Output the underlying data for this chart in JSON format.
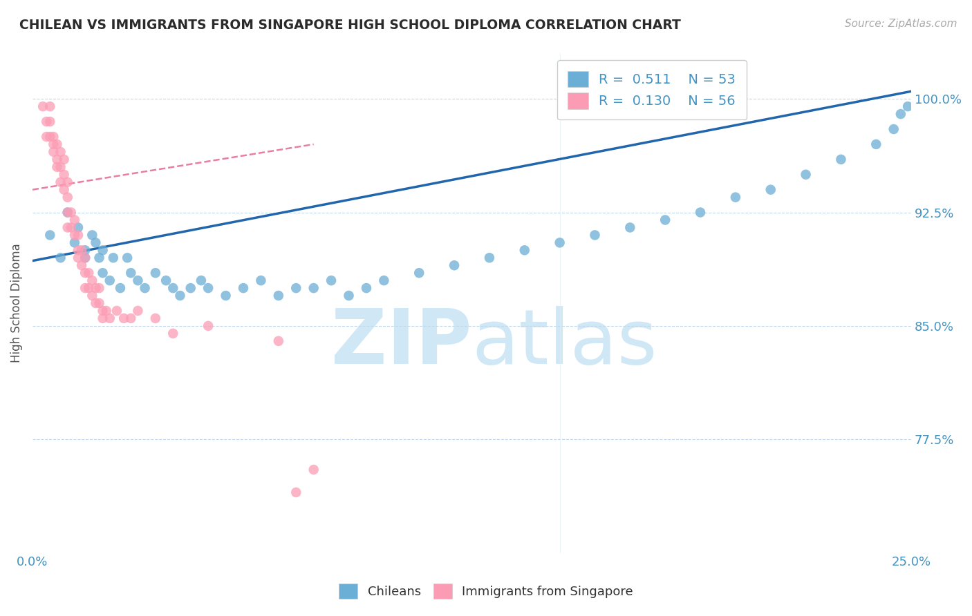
{
  "title": "CHILEAN VS IMMIGRANTS FROM SINGAPORE HIGH SCHOOL DIPLOMA CORRELATION CHART",
  "source_text": "Source: ZipAtlas.com",
  "ylabel": "High School Diploma",
  "xlim": [
    0.0,
    0.25
  ],
  "ylim": [
    0.7,
    1.03
  ],
  "yticks": [
    0.775,
    0.85,
    0.925,
    1.0
  ],
  "ytick_labels": [
    "77.5%",
    "85.0%",
    "92.5%",
    "100.0%"
  ],
  "xticks": [
    0.0,
    0.05,
    0.1,
    0.15,
    0.2,
    0.25
  ],
  "xtick_labels": [
    "0.0%",
    "",
    "",
    "",
    "",
    "25.0%"
  ],
  "legend_R_blue": "0.511",
  "legend_N_blue": "53",
  "legend_R_pink": "0.130",
  "legend_N_pink": "56",
  "blue_color": "#6baed6",
  "pink_color": "#fc9cb4",
  "blue_line_color": "#2166ac",
  "pink_line_color": "#e87fa0",
  "axis_color": "#4393c3",
  "watermark_color": "#d0e8f5",
  "blue_scatter_x": [
    0.005,
    0.008,
    0.01,
    0.012,
    0.013,
    0.015,
    0.015,
    0.017,
    0.018,
    0.019,
    0.02,
    0.02,
    0.022,
    0.023,
    0.025,
    0.027,
    0.028,
    0.03,
    0.032,
    0.035,
    0.038,
    0.04,
    0.042,
    0.045,
    0.048,
    0.05,
    0.055,
    0.06,
    0.065,
    0.07,
    0.075,
    0.08,
    0.085,
    0.09,
    0.095,
    0.1,
    0.11,
    0.12,
    0.13,
    0.14,
    0.15,
    0.16,
    0.17,
    0.18,
    0.19,
    0.2,
    0.21,
    0.22,
    0.23,
    0.24,
    0.245,
    0.247,
    0.249
  ],
  "blue_scatter_y": [
    0.91,
    0.895,
    0.925,
    0.905,
    0.915,
    0.9,
    0.895,
    0.91,
    0.905,
    0.895,
    0.885,
    0.9,
    0.88,
    0.895,
    0.875,
    0.895,
    0.885,
    0.88,
    0.875,
    0.885,
    0.88,
    0.875,
    0.87,
    0.875,
    0.88,
    0.875,
    0.87,
    0.875,
    0.88,
    0.87,
    0.875,
    0.875,
    0.88,
    0.87,
    0.875,
    0.88,
    0.885,
    0.89,
    0.895,
    0.9,
    0.905,
    0.91,
    0.915,
    0.92,
    0.925,
    0.935,
    0.94,
    0.95,
    0.96,
    0.97,
    0.98,
    0.99,
    0.995
  ],
  "pink_scatter_x": [
    0.003,
    0.004,
    0.004,
    0.005,
    0.005,
    0.005,
    0.006,
    0.006,
    0.006,
    0.007,
    0.007,
    0.007,
    0.008,
    0.008,
    0.008,
    0.009,
    0.009,
    0.009,
    0.01,
    0.01,
    0.01,
    0.01,
    0.011,
    0.011,
    0.012,
    0.012,
    0.013,
    0.013,
    0.013,
    0.014,
    0.014,
    0.015,
    0.015,
    0.015,
    0.016,
    0.016,
    0.017,
    0.017,
    0.018,
    0.018,
    0.019,
    0.019,
    0.02,
    0.02,
    0.021,
    0.022,
    0.024,
    0.026,
    0.028,
    0.03,
    0.035,
    0.04,
    0.05,
    0.07,
    0.075,
    0.08
  ],
  "pink_scatter_y": [
    0.995,
    0.985,
    0.975,
    0.995,
    0.985,
    0.975,
    0.97,
    0.965,
    0.975,
    0.97,
    0.96,
    0.955,
    0.965,
    0.955,
    0.945,
    0.96,
    0.95,
    0.94,
    0.945,
    0.935,
    0.925,
    0.915,
    0.925,
    0.915,
    0.92,
    0.91,
    0.91,
    0.9,
    0.895,
    0.9,
    0.89,
    0.895,
    0.885,
    0.875,
    0.885,
    0.875,
    0.88,
    0.87,
    0.875,
    0.865,
    0.875,
    0.865,
    0.86,
    0.855,
    0.86,
    0.855,
    0.86,
    0.855,
    0.855,
    0.86,
    0.855,
    0.845,
    0.85,
    0.84,
    0.74,
    0.755
  ]
}
